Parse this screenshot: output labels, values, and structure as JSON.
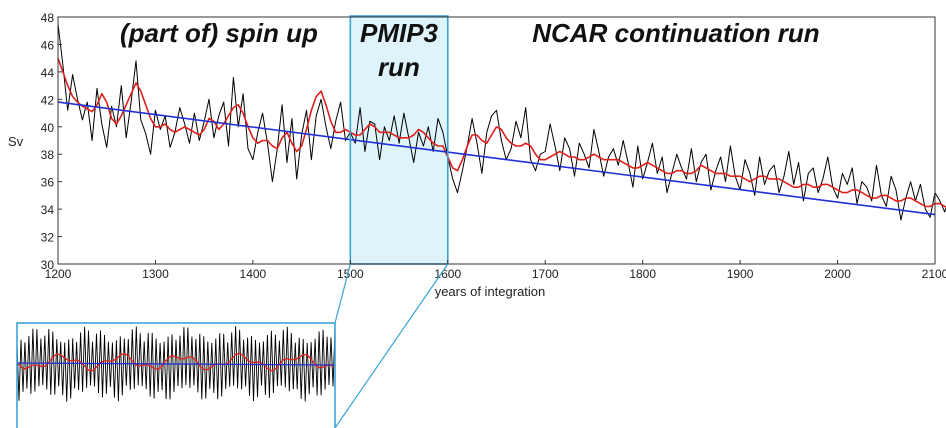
{
  "chart_data": {
    "type": "line",
    "title": "",
    "xlabel": "years of integration",
    "ylabel": "Sv",
    "xlim": [
      1200,
      2100
    ],
    "ylim": [
      30,
      48
    ],
    "x_ticks": [
      1200,
      1300,
      1400,
      1500,
      1600,
      1700,
      1800,
      1900,
      2000,
      2100
    ],
    "y_ticks": [
      30,
      32,
      34,
      36,
      38,
      40,
      42,
      44,
      46,
      48
    ],
    "grid": false,
    "highlight": {
      "x_start": 1500,
      "x_end": 1600,
      "color": "#dff3fa",
      "border": "#3aa3d8"
    },
    "annotations": [
      {
        "text": "(part of) spin up",
        "at_x": 1215
      },
      {
        "text": "PMIP3",
        "at_x": 1550
      },
      {
        "text": "run",
        "at_x": 1550
      },
      {
        "text": "NCAR continuation run",
        "at_x": 1830
      }
    ],
    "series": [
      {
        "style": "raw",
        "color": "#000000",
        "x_start": 1200,
        "x_step": 5,
        "values": [
          47.5,
          44.5,
          41.2,
          43.8,
          42.0,
          40.5,
          41.8,
          39.0,
          42.8,
          40.2,
          38.5,
          41.5,
          40.0,
          43.0,
          39.2,
          41.8,
          44.8,
          40.5,
          39.5,
          38.0,
          41.2,
          39.8,
          40.8,
          38.5,
          39.6,
          41.4,
          40.2,
          38.8,
          41.0,
          39.0,
          40.4,
          42.0,
          39.2,
          40.8,
          41.8,
          38.6,
          43.6,
          40.0,
          42.4,
          38.4,
          37.6,
          39.6,
          41.0,
          38.8,
          36.0,
          38.4,
          41.6,
          37.4,
          40.6,
          36.2,
          39.4,
          41.2,
          37.6,
          40.8,
          42.0,
          40.0,
          38.4,
          40.4,
          41.8,
          39.0,
          39.6,
          38.8,
          41.4,
          38.2,
          40.4,
          40.2,
          37.6,
          40.0,
          39.0,
          40.8,
          38.8,
          41.0,
          39.2,
          37.4,
          39.6,
          38.6,
          40.0,
          38.2,
          40.6,
          39.6,
          37.8,
          36.2,
          35.2,
          36.8,
          38.6,
          40.6,
          38.8,
          36.6,
          39.6,
          40.8,
          41.2,
          39.0,
          37.6,
          38.4,
          40.4,
          39.2,
          41.4,
          37.6,
          36.8,
          38.0,
          38.2,
          40.2,
          38.6,
          36.8,
          39.2,
          38.4,
          36.4,
          38.8,
          38.0,
          37.0,
          39.8,
          38.2,
          36.4,
          37.8,
          38.4,
          37.2,
          39.0,
          37.4,
          35.6,
          38.6,
          36.2,
          37.4,
          38.8,
          36.6,
          37.8,
          35.2,
          36.6,
          38.0,
          37.0,
          36.2,
          38.4,
          36.0,
          37.4,
          38.0,
          35.4,
          36.8,
          37.8,
          36.0,
          38.6,
          36.4,
          35.4,
          37.6,
          36.6,
          35.0,
          37.8,
          35.8,
          36.8,
          37.2,
          35.2,
          36.4,
          38.2,
          35.8,
          37.4,
          34.6,
          36.6,
          37.0,
          35.2,
          36.2,
          37.8,
          35.6,
          34.8,
          36.6,
          35.8,
          37.0,
          34.4,
          36.0,
          35.6,
          34.6,
          37.2,
          35.0,
          34.2,
          36.4,
          35.4,
          33.2,
          34.8,
          36.0,
          34.6,
          35.8,
          34.0,
          33.4,
          35.2,
          34.6,
          33.8,
          35.0,
          33.8,
          32.6
        ]
      },
      {
        "style": "smoothed",
        "color": "#e0201b",
        "x_start": 1200,
        "x_step": 5,
        "values": [
          45.0,
          44.0,
          43.0,
          42.2,
          41.8,
          41.5,
          41.3,
          41.1,
          41.6,
          42.4,
          41.8,
          40.6,
          40.2,
          40.8,
          41.6,
          42.4,
          43.2,
          42.6,
          41.6,
          40.6,
          40.0,
          40.0,
          40.2,
          39.8,
          39.6,
          39.8,
          40.0,
          39.8,
          39.6,
          39.4,
          39.8,
          40.6,
          40.4,
          39.8,
          40.2,
          40.8,
          41.4,
          41.6,
          41.0,
          40.0,
          39.2,
          38.8,
          39.0,
          39.0,
          38.6,
          38.4,
          39.2,
          39.6,
          38.8,
          38.2,
          38.6,
          39.8,
          41.2,
          42.2,
          42.6,
          41.6,
          40.4,
          39.6,
          39.6,
          39.8,
          39.6,
          39.4,
          39.4,
          39.8,
          40.2,
          40.0,
          39.6,
          39.6,
          39.6,
          39.4,
          39.2,
          39.2,
          39.2,
          39.4,
          39.8,
          39.6,
          39.2,
          38.8,
          38.6,
          38.6,
          37.8,
          37.0,
          36.8,
          37.6,
          38.6,
          39.4,
          39.4,
          39.0,
          38.8,
          39.4,
          40.0,
          39.8,
          39.2,
          38.8,
          38.6,
          38.6,
          38.8,
          38.6,
          38.0,
          37.6,
          37.6,
          37.8,
          38.0,
          38.2,
          38.0,
          37.8,
          37.8,
          37.6,
          37.6,
          37.8,
          38.0,
          37.8,
          37.6,
          37.6,
          37.6,
          37.6,
          37.4,
          37.2,
          37.0,
          37.0,
          37.2,
          37.4,
          37.2,
          37.0,
          36.8,
          36.6,
          36.6,
          36.8,
          36.8,
          36.6,
          36.6,
          36.8,
          37.2,
          37.0,
          36.8,
          36.6,
          36.6,
          36.6,
          36.4,
          36.4,
          36.4,
          36.2,
          36.0,
          36.2,
          36.4,
          36.4,
          36.2,
          36.2,
          36.2,
          36.0,
          35.8,
          35.6,
          35.6,
          35.8,
          35.8,
          35.6,
          35.6,
          35.8,
          35.8,
          35.6,
          35.4,
          35.2,
          35.2,
          35.4,
          35.4,
          35.2,
          35.0,
          34.8,
          34.8,
          35.0,
          35.0,
          34.8,
          34.6,
          34.6,
          34.8,
          34.8,
          34.6,
          34.4,
          34.2,
          34.2,
          34.4,
          34.4,
          34.2,
          34.0,
          33.8
        ]
      },
      {
        "style": "trend",
        "color": "#1f2fd6",
        "x": [
          1200,
          2100
        ],
        "values": [
          41.8,
          33.6
        ]
      }
    ],
    "inset": {
      "zoom_of": [
        1500,
        1600
      ],
      "line_colors": [
        "#000000",
        "#e0201b",
        "#1f2fd6"
      ]
    }
  }
}
